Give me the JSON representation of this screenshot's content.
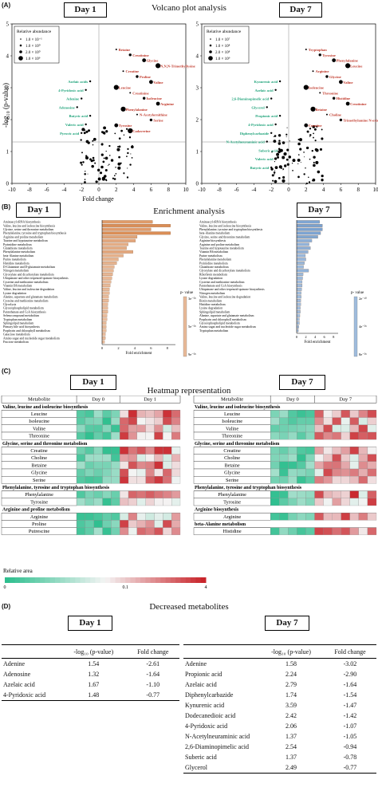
{
  "panels": {
    "a": {
      "label": "(A)",
      "title": "Volcano plot analysis"
    },
    "b": {
      "label": "(B)",
      "title": "Enrichment analysis"
    },
    "c": {
      "label": "(C)",
      "title": "Heatmap representation"
    },
    "d": {
      "label": "(D)",
      "title": "Decreased metabolites"
    }
  },
  "days": {
    "d1": "Day 1",
    "d7": "Day 7"
  },
  "volcano": {
    "ylabel": "-log₁₀ (p-value)",
    "xlabel": "Fold change",
    "legend_title": "Relative abundance",
    "legend_items": [
      "1.0 × 10⁷",
      "1.0 × 10⁸",
      "2.0 × 10⁸",
      "1.0 × 10⁹"
    ],
    "left_legend_items": [
      "1.0 × 10⁻¹",
      "1.0 × 10⁰",
      "2.0 × 10⁰",
      "1.0 × 10⁹"
    ],
    "xticks": [
      "-10",
      "-8",
      "-6",
      "-4",
      "-2",
      "0",
      "2",
      "4",
      "6",
      "8",
      "10"
    ],
    "yticks": [
      "0",
      "1",
      "2",
      "3",
      "4",
      "5"
    ],
    "day1_up": [
      "Betaine",
      "Creatinine",
      "Glycine",
      "N,N,N-Trimethyllysine",
      "Creatine",
      "Proline",
      "Valine",
      "Leucine",
      "Creatinine",
      "Isoleucine",
      "Arginine",
      "Phenylalanine",
      "N-Acetylornithine",
      "Serine",
      "Tyrosine",
      "Cadaverine"
    ],
    "day1_down": [
      "Azelaic acids",
      "4-Pyridoxic acid",
      "Adenine",
      "Adenosine",
      "Butyric acid",
      "Valeric acid",
      "Pyruvic acid"
    ],
    "day7_up": [
      "Tryptophan",
      "Tyrosine",
      "Phenylalanine",
      "Leucine",
      "Arginine",
      "Glycine",
      "Valine",
      "Isoleucine",
      "Threonine",
      "Histidine",
      "Creatinine",
      "Betaine",
      "Choline",
      "Trimethylamine N-oxide",
      "Creatine"
    ],
    "day7_down": [
      "Kynurenic acid",
      "Azelaic acid",
      "2,6-Diaminopimelic acid",
      "Glycerol",
      "Propionic acid",
      "4-Pyridoxic acid",
      "Diphenylcarbazide",
      "N-Acetylneuraminic acid",
      "Suberic acid",
      "Valeric acid",
      "Butyric acid"
    ]
  },
  "enrichment": {
    "xlabel": "Fold enrichment",
    "pvalue_label": "p- value",
    "day1_ticks": [
      "3e⁻⁰¹",
      "5e⁻⁰¹",
      "9e⁻⁰¹"
    ],
    "day7_ticks": [
      "2e⁻¹⁰",
      "4e⁻⁰¹",
      "8e⁻⁰¹"
    ],
    "day1_axis": [
      "0",
      "2",
      "4",
      "6",
      "8"
    ],
    "day7_axis": [
      "0",
      "2",
      "4",
      "6",
      "8"
    ],
    "day1_pathways": [
      "Aminoacyl-tRNA biosynthesis",
      "Valine, leucine and isoleucine biosynthesis",
      "Glycine, serine and threonine metabolism",
      "Phenylalanine, tyrosine and tryptophan biosynthesis",
      "Arginine and proline metabolism",
      "Taurine and hypotaurine metabolism",
      "Pyrimidine metabolism",
      "Glutathione metabolism",
      "Phenylalanine metabolism",
      "beta-Alanine metabolism",
      "Purine metabolism",
      "Histidine metabolism",
      "D-Glutamine and D-glutamate metabolism",
      "Nitrogen metabolism",
      "Glyoxylate and dicarboxylate metabolism",
      "Ubiquinone and other terpenoid-quinone biosynthesis",
      "Cysteine and methionine metabolism",
      "Vitamin B6 metabolism",
      "Valine, leucine and isoleucine degradation",
      "Lysine degradation",
      "Alanine, aspartate and glutamate metabolism",
      "Cysteine and methionine metabolism",
      "Glycolysis",
      "Glycerophospholipid metabolism",
      "Pantothenate and CoA biosynthesis",
      "Selenocompound metabolism",
      "Tryptophan metabolism",
      "Sphingolipid metabolism",
      "Primary bile acid biosynthesis",
      "Porphyrin and chlorophyll metabolism",
      "Galactose metabolism",
      "Amino sugar and nucleotide sugar metabolism",
      "Fructose metabolism"
    ],
    "day1_values": [
      6.2,
      8.4,
      6.0,
      8.4,
      4.3,
      4.1,
      3.2,
      3.0,
      3.8,
      2.6,
      2.0,
      1.8,
      1.5,
      1.4,
      1.3,
      1.2,
      1.1,
      1.0,
      0.9,
      0.9,
      0.8,
      0.8,
      0.7,
      0.7,
      0.7,
      0.6,
      0.6,
      0.5,
      0.5,
      0.5,
      0.4,
      0.4,
      0.3
    ],
    "day7_pathways": [
      "Aminoacyl-tRNA biosynthesis",
      "Valine, leucine and isoleucine biosynthesis",
      "Phenylalanine, tyrosine and tryptophan biosynthesis",
      "beta-Alanine metabolism",
      "Glycine, serine and threonine metabolism",
      "Arginine biosynthesis",
      "Arginine and proline metabolism",
      "Taurine and hypotaurine metabolism",
      "Vitamin B6 metabolism",
      "Purine metabolism",
      "Phenylalanine metabolism",
      "Pyrimidine metabolism",
      "Glutathione metabolism",
      "Glyoxylate and dicarboxylate metabolism",
      "Riboflavin metabolism",
      "Lysine degradation",
      "Cysteine and methionine metabolism",
      "Pantothenate and CoA biosynthesis",
      "Ubiquinone and other terpenoid-quinone biosynthesis",
      "Nitrogen metabolism",
      "Valine, leucine and isoleucine degradation",
      "Biotin metabolism",
      "Histidine metabolism",
      "Lysine degradation",
      "Sphingolipid metabolism",
      "Alanine, aspartate and glutamate metabolism",
      "Porphyrin and chlorophyll metabolism",
      "Glycerophospholipid metabolism",
      "Amino sugar and nucleotide sugar metabolism",
      "Tryptophan metabolism"
    ],
    "day7_values": [
      5.0,
      5.6,
      5.6,
      5.2,
      4.6,
      3.3,
      2.7,
      3.0,
      2.5,
      1.9,
      2.0,
      1.7,
      1.5,
      2.6,
      1.4,
      1.3,
      1.2,
      1.2,
      1.1,
      1.0,
      1.0,
      0.9,
      0.9,
      0.8,
      0.8,
      0.7,
      0.6,
      0.6,
      0.5,
      0.4
    ]
  },
  "heatmap": {
    "col_metabolite": "Metabolite",
    "col_day0": "Day 0",
    "col_day1": "Day 1",
    "col_day7": "Day 7",
    "scale_label": "Relative area",
    "scale_ticks": [
      "0",
      "0.1",
      "4"
    ],
    "day1_groups": [
      {
        "name": "Valine, leucine and isoleucine biosynthesis",
        "rows": [
          "Leucine",
          "Isoleucine",
          "Valine",
          "Threonine"
        ]
      },
      {
        "name": "Glycine, serine and threonine metabolism",
        "rows": [
          "Creatine",
          "Choline",
          "Betaine",
          "Glycine",
          "Serine"
        ]
      },
      {
        "name": "Phenylalanine, tyrosine and tryptophan biosynthesis",
        "rows": [
          "Phenylalanine",
          "Tyrosine"
        ]
      },
      {
        "name": "Arginine and proline metabolism",
        "rows": [
          "Arginine",
          "Proline",
          "Putrescine"
        ]
      }
    ],
    "day7_groups": [
      {
        "name": "Valine, leucine and isoleucine biosynthesis",
        "rows": [
          "Leucine",
          "Isoleucine",
          "Valine",
          "Threonine"
        ]
      },
      {
        "name": "Glycine, serine and threonine metabolism",
        "rows": [
          "Creatine",
          "Choline",
          "Betaine",
          "Glycine",
          "Serine"
        ]
      },
      {
        "name": "Phenylalanine, tyrosine and tryptophan biosynthesis",
        "rows": [
          "Phenylalanine",
          "Tyrosine"
        ]
      },
      {
        "name": "Arginine biosynthesis",
        "rows": [
          "Arginine"
        ]
      },
      {
        "name": "beta-Alanine metabolism",
        "rows": [
          "Histidine"
        ]
      }
    ]
  },
  "decreased": {
    "col_name": "",
    "col_p": "-log₁₀ (p-value)",
    "col_fc": "Fold change",
    "day1_rows": [
      {
        "name": "Adenine",
        "p": "1.54",
        "fc": "-2.61"
      },
      {
        "name": "Adenosine",
        "p": "1.32",
        "fc": "-1.64"
      },
      {
        "name": "Azelaic acid",
        "p": "1.67",
        "fc": "-1.10"
      },
      {
        "name": "4-Pyridoxic acid",
        "p": "1.48",
        "fc": "-0.77"
      }
    ],
    "day7_rows": [
      {
        "name": "Adenine",
        "p": "1.58",
        "fc": "-3.02"
      },
      {
        "name": "Propionic acid",
        "p": "2.24",
        "fc": "-2.90"
      },
      {
        "name": "Azelaic acid",
        "p": "2.79",
        "fc": "-1.64"
      },
      {
        "name": "Diphenylcarbazide",
        "p": "1.74",
        "fc": "-1.54"
      },
      {
        "name": "Kynurenic acid",
        "p": "3.59",
        "fc": "-1.47"
      },
      {
        "name": "Dodecanedioic acid",
        "p": "2.42",
        "fc": "-1.42"
      },
      {
        "name": "4-Pyridoxic acid",
        "p": "2.06",
        "fc": "-1.07"
      },
      {
        "name": "N-Acetylneuraminic acid",
        "p": "1.37",
        "fc": "-1.05"
      },
      {
        "name": "2,6-Diaminopimelic acid",
        "p": "2.54",
        "fc": "-0.94"
      },
      {
        "name": "Suberic acid",
        "p": "1.37",
        "fc": "-0.78"
      },
      {
        "name": "Glycerol",
        "p": "2.49",
        "fc": "-0.77"
      }
    ]
  },
  "colors": {
    "up": "#c0392b",
    "down": "#1fa37a",
    "orange": "#d98a52",
    "blue": "#5f8fc7",
    "hm_low": "#2fbf8f",
    "hm_high": "#c9252b"
  }
}
